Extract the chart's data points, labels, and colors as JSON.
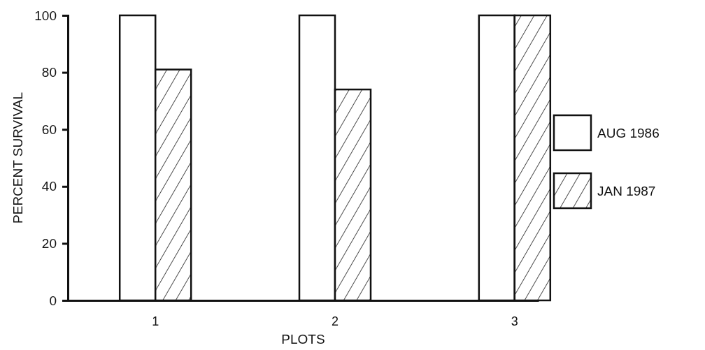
{
  "chart_data": {
    "type": "bar",
    "xlabel": "PLOTS",
    "ylabel": "PERCENT SURVIVAL",
    "categories": [
      "1",
      "2",
      "3"
    ],
    "series": [
      {
        "name": "AUG 1986",
        "color": "#ffffff",
        "values": [
          100,
          100,
          100
        ]
      },
      {
        "name": "JAN 1987",
        "color": "#ffffff",
        "values": [
          81,
          74,
          100
        ]
      }
    ],
    "ylim": [
      0,
      100
    ],
    "yticks": [
      0,
      20,
      40,
      60,
      80,
      100
    ],
    "legend": "right"
  }
}
